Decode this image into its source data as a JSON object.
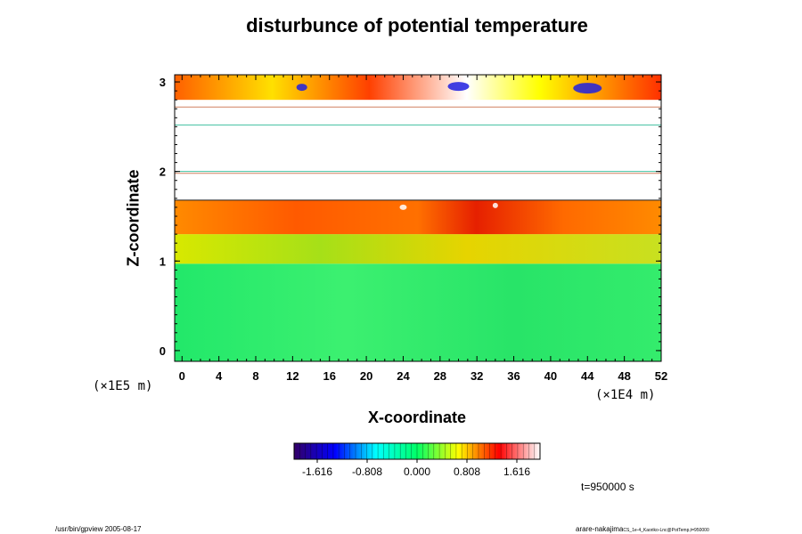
{
  "chart_data": {
    "type": "heatmap",
    "title": "disturbunce of potential temperature",
    "xlabel": "X-coordinate",
    "ylabel": "Z-coordinate",
    "x_ticks": [
      0,
      4,
      8,
      12,
      16,
      20,
      24,
      28,
      32,
      36,
      40,
      44,
      48,
      52
    ],
    "y_ticks": [
      0,
      1,
      2,
      3
    ],
    "x_unit": "(×1E4 m)",
    "y_unit": "(×1E5 m)",
    "xlim": [
      -0.8,
      52
    ],
    "ylim": [
      -0.12,
      3.08
    ],
    "colorbar": {
      "ticks": [
        "-1.616",
        "-0.808",
        "0.000",
        "0.808",
        "1.616"
      ],
      "colormap": [
        "#330066",
        "#0000ff",
        "#00ffff",
        "#00ff66",
        "#ffff00",
        "#ff0000",
        "#ffffff"
      ]
    },
    "field_bands": [
      {
        "z_from": -0.12,
        "z_to": 0.97,
        "level": 0.0
      },
      {
        "z_from": 0.97,
        "z_to": 1.3,
        "level": 0.55
      },
      {
        "z_from": 1.3,
        "z_to": 1.68,
        "level": 1.2
      },
      {
        "z_from": 1.68,
        "z_to": 2.8,
        "level": null
      },
      {
        "z_from": 2.8,
        "z_to": 3.08,
        "level": 1.4
      }
    ]
  },
  "footer": {
    "time": "t=950000 s",
    "left_note": "/usr/bin/gpview 2005-08-17",
    "right_note": "arare-nakajima",
    "right_note_sub": "CS_1e-4_Kaoriko-Lnc@PotTemp,t=950000"
  }
}
